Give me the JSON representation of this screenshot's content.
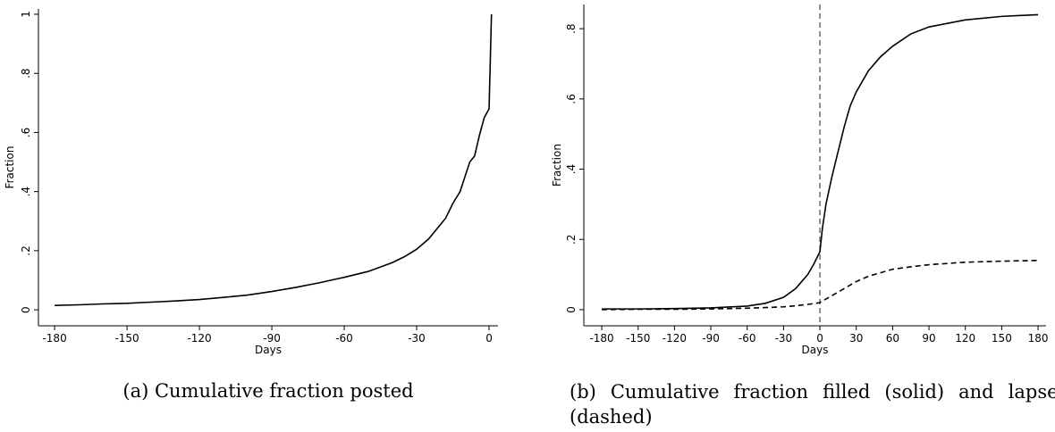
{
  "chart_data": [
    {
      "type": "line",
      "caption": "(a) Cumulative fraction posted",
      "xlabel": "Days",
      "ylabel": "Fraction",
      "x": [
        -180,
        -170,
        -160,
        -150,
        -140,
        -130,
        -120,
        -110,
        -100,
        -90,
        -80,
        -70,
        -60,
        -50,
        -45,
        -40,
        -35,
        -30,
        -25,
        -20,
        -18,
        -15,
        -12,
        -10,
        -8,
        -6,
        -4,
        -2,
        0,
        1
      ],
      "series": [
        {
          "color": "#000000",
          "line_style": "solid",
          "values": [
            0.015,
            0.017,
            0.02,
            0.022,
            0.026,
            0.03,
            0.035,
            0.042,
            0.05,
            0.062,
            0.076,
            0.092,
            0.11,
            0.13,
            0.145,
            0.16,
            0.18,
            0.205,
            0.24,
            0.29,
            0.31,
            0.36,
            0.4,
            0.45,
            0.5,
            0.52,
            0.59,
            0.65,
            0.68,
            1.0
          ]
        }
      ],
      "xlim": [
        -186.7,
        3.7
      ],
      "ylim": [
        -0.054,
        1.018
      ],
      "xticks": [
        -180,
        -150,
        -120,
        -90,
        -60,
        -30,
        0
      ],
      "yticks": [
        0,
        {
          "value": 0.2,
          "label": ".2"
        },
        {
          "value": 0.4,
          "label": ".4"
        },
        {
          "value": 0.6,
          "label": ".6"
        },
        {
          "value": 0.8,
          "label": ".8"
        },
        1
      ],
      "grid": false
    },
    {
      "type": "line",
      "caption": "(b) Cumulative fraction filled (solid) and lapsed (dashed)",
      "xlabel": "Days",
      "ylabel": "Fraction",
      "x": [
        -180,
        -150,
        -120,
        -90,
        -60,
        -45,
        -30,
        -20,
        -10,
        -5,
        0,
        2,
        5,
        10,
        15,
        20,
        25,
        30,
        40,
        50,
        60,
        75,
        90,
        120,
        150,
        180
      ],
      "series": [
        {
          "color": "#000000",
          "line_style": "solid",
          "values": [
            0.002,
            0.002,
            0.003,
            0.005,
            0.01,
            0.018,
            0.035,
            0.06,
            0.1,
            0.13,
            0.165,
            0.23,
            0.3,
            0.38,
            0.45,
            0.52,
            0.58,
            0.62,
            0.68,
            0.72,
            0.75,
            0.785,
            0.805,
            0.825,
            0.835,
            0.84
          ]
        },
        {
          "color": "#000000",
          "line_style": "dashed",
          "values": [
            0,
            0.001,
            0.001,
            0.002,
            0.004,
            0.006,
            0.008,
            0.011,
            0.015,
            0.017,
            0.02,
            0.025,
            0.03,
            0.04,
            0.05,
            0.06,
            0.07,
            0.08,
            0.095,
            0.105,
            0.115,
            0.122,
            0.128,
            0.135,
            0.138,
            0.14
          ]
        }
      ],
      "vline": 0,
      "xlim": [
        -194.8,
        186.6
      ],
      "ylim": [
        -0.046,
        0.869
      ],
      "xticks": [
        -180,
        -150,
        -120,
        -90,
        -60,
        -30,
        0,
        30,
        60,
        90,
        120,
        150,
        180
      ],
      "yticks": [
        0,
        {
          "value": 0.2,
          "label": ".2"
        },
        {
          "value": 0.4,
          "label": ".4"
        },
        {
          "value": 0.6,
          "label": ".6"
        },
        {
          "value": 0.8,
          "label": ".8"
        }
      ],
      "grid": false
    }
  ]
}
